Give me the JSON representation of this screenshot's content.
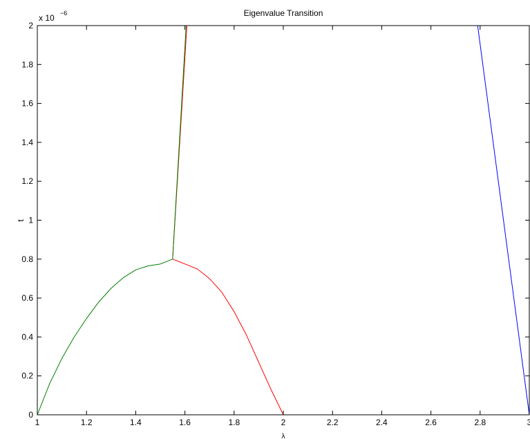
{
  "chart_data": {
    "type": "line",
    "title": "Eigenvalue Transition",
    "xlabel": "λ",
    "ylabel": "t",
    "xlim": [
      1,
      3
    ],
    "ylim": [
      0,
      2e-06
    ],
    "y_exponent_label": {
      "base": "x 10",
      "exponent": "−6"
    },
    "xticks": [
      1,
      1.2,
      1.4,
      1.6,
      1.8,
      2,
      2.2,
      2.4,
      2.6,
      2.8,
      3
    ],
    "xtick_labels": [
      "1",
      "1.2",
      "1.4",
      "1.6",
      "1.8",
      "2",
      "2.2",
      "2.4",
      "2.6",
      "2.8",
      "3"
    ],
    "yticks": [
      0,
      0.2,
      0.4,
      0.6,
      0.8,
      1,
      1.2,
      1.4,
      1.6,
      1.8,
      2
    ],
    "ytick_labels": [
      "0",
      "0.2",
      "0.4",
      "0.6",
      "0.8",
      "1",
      "1.2",
      "1.4",
      "1.6",
      "1.8",
      "2"
    ],
    "grid": false,
    "series": [
      {
        "color": "#007f00",
        "x": [
          1.0,
          1.05,
          1.1,
          1.15,
          1.2,
          1.25,
          1.3,
          1.35,
          1.4,
          1.45,
          1.5,
          1.55
        ],
        "y": [
          0,
          1.6e-07,
          2.9e-07,
          4e-07,
          4.95e-07,
          5.8e-07,
          6.5e-07,
          7.05e-07,
          7.45e-07,
          7.65e-07,
          7.75e-07,
          8e-07
        ]
      },
      {
        "color": "#ff0000",
        "x": [
          1.55,
          1.6,
          1.65,
          1.7,
          1.75,
          1.8,
          1.85,
          1.9,
          1.95,
          2.0
        ],
        "y": [
          8e-07,
          7.75e-07,
          7.5e-07,
          7e-07,
          6.3e-07,
          5.3e-07,
          4.1e-07,
          2.7e-07,
          1.3e-07,
          0
        ]
      },
      {
        "color": "#ff0000",
        "x": [
          1.55,
          1.608
        ],
        "y": [
          8e-07,
          2e-06
        ]
      },
      {
        "color": "#007f00",
        "x": [
          1.55,
          1.605
        ],
        "y": [
          8e-07,
          2e-06
        ]
      },
      {
        "color": "#0000ff",
        "x": [
          2.79,
          3.0
        ],
        "y": [
          2e-06,
          0
        ]
      }
    ]
  }
}
